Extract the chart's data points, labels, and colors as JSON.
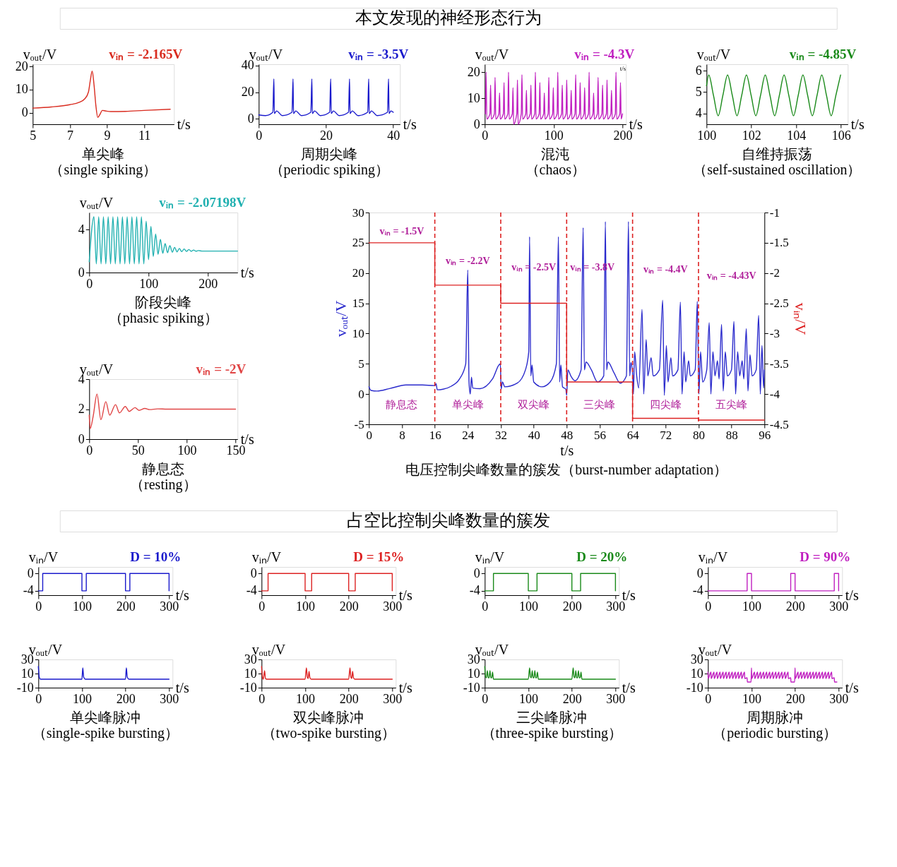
{
  "chart_data": [
    {
      "type": "other",
      "title": "本文发现的神经形态行为"
    },
    {
      "type": "line",
      "title": "单尖峰",
      "subtitle": "（single spiking）",
      "xlabel": "t/s",
      "ylabel": "vₒᵤₜ/V",
      "annotations": [
        "vᵢₙ = -2.165V"
      ],
      "xlim": [
        5,
        12.6
      ],
      "ylim": [
        -5,
        21
      ],
      "xticks": [
        5,
        7,
        9,
        11
      ],
      "yticks": [
        0,
        10,
        20
      ],
      "x": [
        5,
        6,
        7,
        7.5,
        7.8,
        8.0,
        8.1,
        8.2,
        8.3,
        8.4,
        8.5,
        8.6,
        8.75,
        8.9,
        9.2,
        10,
        11,
        12.4
      ],
      "series": [
        {
          "color": "#d92b1f",
          "values": [
            2,
            2.5,
            3.5,
            4.5,
            6,
            9,
            14,
            18,
            12,
            3,
            -2,
            -1,
            1,
            0.8,
            0.5,
            0.6,
            1,
            1.5
          ]
        }
      ]
    },
    {
      "type": "line",
      "title": "周期尖峰",
      "subtitle": "（periodic spiking）",
      "xlabel": "t/s",
      "ylabel": "vₒᵤₜ/V",
      "annotations": [
        "vᵢₙ = -3.5V"
      ],
      "xlim": [
        0,
        42
      ],
      "ylim": [
        -4,
        41
      ],
      "xticks": [
        0,
        20,
        40
      ],
      "yticks": [
        0,
        20,
        40
      ],
      "x": [
        0,
        2,
        4.2,
        4.5,
        4.65,
        5.3,
        7,
        9.9,
        10.2,
        10.35,
        11,
        12.7,
        15.5,
        15.8,
        15.95,
        16.6,
        18.3,
        21.1,
        21.4,
        21.55,
        22.2,
        23.9,
        26.7,
        27,
        27.15,
        27.8,
        29.5,
        32.4,
        32.7,
        32.85,
        33.5,
        35.2,
        38.3,
        38.6,
        38.75,
        39.3,
        40
      ],
      "series": [
        {
          "color": "#1a1acc",
          "values": [
            3,
            2.5,
            5,
            30,
            4,
            6,
            2.5,
            5,
            30,
            4,
            6,
            2.5,
            5,
            30,
            4,
            6,
            2.5,
            5,
            30,
            4,
            6,
            2.5,
            5,
            30,
            4,
            6,
            2.5,
            5,
            30,
            4,
            6,
            2.5,
            5,
            30,
            4,
            6,
            5
          ]
        }
      ]
    },
    {
      "type": "line",
      "title": "混沌",
      "subtitle": "（chaos）",
      "xlabel": "t/s",
      "ylabel": "vₒᵤₜ/V",
      "annotations": [
        "vᵢₙ = -4.3V",
        "t/s"
      ],
      "xlim": [
        0,
        205
      ],
      "ylim": [
        0,
        23
      ],
      "xticks": [
        0,
        100,
        200
      ],
      "yticks": [
        0,
        10,
        20
      ],
      "x": [
        1,
        2,
        3,
        7.5,
        8.5,
        9.5,
        14,
        15,
        16,
        20.5,
        21.5,
        22.5,
        27,
        28,
        29,
        33.5,
        34.5,
        35.5,
        40,
        41,
        42,
        46.5,
        47.5,
        48.5,
        53,
        54,
        55,
        59.5,
        60.5,
        61.5,
        66,
        67,
        68,
        72.5,
        73.5,
        74.5,
        79,
        80,
        81,
        85.5,
        86.5,
        87.5,
        92,
        93,
        94,
        98.5,
        99.5,
        100.5,
        105,
        106,
        107,
        111.5,
        112.5,
        113.5,
        118,
        119,
        120,
        124.5,
        125.5,
        126.5,
        131,
        132,
        133,
        137.5,
        138.5,
        139.5,
        144,
        145,
        146,
        150.5,
        151.5,
        152.5,
        157,
        158,
        159,
        163.5,
        164.5,
        165.5,
        170,
        171,
        172,
        176.5,
        177.5,
        178.5,
        183,
        184,
        185,
        189.5,
        190.5,
        191.5,
        196,
        197,
        198,
        200
      ],
      "series": [
        {
          "color": "#c020c0",
          "values": [
            4,
            20,
            2,
            4,
            15,
            2,
            4,
            18,
            2,
            4,
            12,
            2,
            4,
            16,
            2,
            4,
            20,
            2,
            4,
            14,
            0,
            4,
            17,
            0,
            4,
            19,
            2,
            4,
            13,
            2,
            4,
            15,
            2,
            4,
            20,
            2,
            4,
            16,
            2,
            4,
            12,
            2,
            4,
            18,
            2,
            4,
            14,
            2,
            4,
            20,
            2,
            4,
            15,
            2,
            4,
            17,
            2,
            4,
            13,
            2,
            4,
            19,
            2,
            4,
            16,
            2,
            4,
            14,
            2,
            4,
            20,
            2,
            4,
            12,
            2,
            4,
            18,
            2,
            4,
            15,
            2,
            4,
            17,
            2,
            4,
            13,
            2,
            4,
            20,
            2,
            4,
            16,
            2,
            4
          ]
        }
      ]
    },
    {
      "type": "line",
      "title": "自维持振荡",
      "subtitle": "（self-sustained oscillation）",
      "xlabel": "t/s",
      "ylabel": "vₒᵤₜ/V",
      "annotations": [
        "vᵢₙ = -4.85V"
      ],
      "xlim": [
        100,
        106.3
      ],
      "ylim": [
        3.5,
        6.3
      ],
      "xticks": [
        100,
        102,
        104,
        106
      ],
      "yticks": [
        4,
        5,
        6
      ],
      "x": [
        100,
        100.1,
        100.31,
        100.52,
        100.73,
        100.94,
        101.15,
        101.36,
        101.57,
        101.78,
        101.99,
        102.2,
        102.41,
        102.62,
        102.83,
        103.04,
        103.25,
        103.46,
        103.67,
        103.88,
        104.09,
        104.3,
        104.51,
        104.72,
        104.93,
        105.14,
        105.35,
        105.56,
        105.77,
        105.98
      ],
      "series": [
        {
          "color": "#1a8a1a",
          "values": [
            5.3,
            5.8,
            4.85,
            3.9,
            4.85,
            5.8,
            4.85,
            3.9,
            4.85,
            5.8,
            4.85,
            3.9,
            4.85,
            5.8,
            4.85,
            3.9,
            4.85,
            5.8,
            4.85,
            3.9,
            4.85,
            5.8,
            4.85,
            3.9,
            4.85,
            5.8,
            4.85,
            3.9,
            4.85,
            5.8
          ]
        }
      ]
    },
    {
      "type": "line",
      "title": "阶段尖峰",
      "subtitle": "（phasic spiking）",
      "xlabel": "t/s",
      "ylabel": "vₒᵤₜ/V",
      "annotations": [
        "vᵢₙ = -2.07198V"
      ],
      "xlim": [
        0,
        250
      ],
      "ylim": [
        0,
        5.6
      ],
      "xticks": [
        0,
        100,
        200
      ],
      "yticks": [
        0,
        4
      ],
      "x": [
        0,
        8,
        12,
        16,
        20,
        24,
        28,
        32,
        36,
        40,
        44,
        48,
        52,
        56,
        60,
        64,
        68,
        72,
        76,
        80,
        84,
        88,
        92,
        96,
        100,
        104,
        108,
        112,
        116,
        120,
        124,
        128,
        132,
        136,
        140,
        144,
        148,
        152,
        156,
        160,
        164,
        168,
        172,
        176,
        180,
        184,
        190,
        250
      ],
      "series": [
        {
          "color": "#20b0b0",
          "values": [
            1,
            5.2,
            0.8,
            5.2,
            0.8,
            5.2,
            0.8,
            5.2,
            0.8,
            5.2,
            0.8,
            5.2,
            0.8,
            5.2,
            0.8,
            5.2,
            0.8,
            5.2,
            0.8,
            5.2,
            0.8,
            5.2,
            0.8,
            4.8,
            1.2,
            4.3,
            1.5,
            3.6,
            1.7,
            3.1,
            1.8,
            2.7,
            1.85,
            2.5,
            1.9,
            2.35,
            1.93,
            2.25,
            1.95,
            2.2,
            1.97,
            2.15,
            1.98,
            2.1,
            1.99,
            2.05,
            2,
            2
          ]
        }
      ]
    },
    {
      "type": "line",
      "title": "静息态",
      "subtitle": "（resting）",
      "xlabel": "t/s",
      "ylabel": "vₒᵤₜ/V",
      "annotations": [
        "vᵢₙ = -2V"
      ],
      "xlim": [
        0,
        152
      ],
      "ylim": [
        0,
        4
      ],
      "xticks": [
        0,
        50,
        100,
        150
      ],
      "yticks": [
        0,
        2,
        4
      ],
      "x": [
        0,
        1,
        4,
        8,
        12,
        17,
        21,
        27,
        31,
        37,
        41,
        47,
        51,
        57,
        62,
        70,
        80,
        150
      ],
      "series": [
        {
          "color": "#e04545",
          "values": [
            1.6,
            0.7,
            1.5,
            3.0,
            1.3,
            2.5,
            1.6,
            2.3,
            1.75,
            2.18,
            1.85,
            2.1,
            1.92,
            2.05,
            1.97,
            2.02,
            2,
            2
          ]
        }
      ]
    },
    {
      "type": "line",
      "title": "电压控制尖峰数量的簇发（burst-number adaptation）",
      "xlabel": "t/s",
      "ylabel": "vₒᵤₜ/V",
      "y2label": "vᵢₙ/V",
      "xlim": [
        0,
        96
      ],
      "ylim": [
        -5,
        30
      ],
      "y2lim": [
        -4.5,
        -1
      ],
      "xticks": [
        0,
        8,
        16,
        24,
        32,
        40,
        48,
        56,
        64,
        72,
        80,
        88,
        96
      ],
      "yticks": [
        -5,
        0,
        5,
        10,
        15,
        20,
        25,
        30
      ],
      "y2ticks": [
        -4.5,
        -4,
        -3.5,
        -3,
        -2.5,
        -2,
        -1.5,
        -1
      ],
      "annotations": [
        "vᵢₙ = -1.5V",
        "vᵢₙ = -2.2V",
        "vᵢₙ = -2.5V",
        "vᵢₙ = -3.8V",
        "vᵢₙ = -4.4V",
        "vᵢₙ = -4.43V",
        "静息态",
        "单尖峰",
        "双尖峰",
        "三尖峰",
        "四尖峰",
        "五尖峰"
      ],
      "ref_lines": [
        {
          "axis": "x",
          "value": 16,
          "color": "#dd2222",
          "line_style": "dashed"
        },
        {
          "axis": "x",
          "value": 32,
          "color": "#dd2222",
          "line_style": "dashed"
        },
        {
          "axis": "x",
          "value": 48,
          "color": "#dd2222",
          "line_style": "dashed"
        },
        {
          "axis": "x",
          "value": 64,
          "color": "#dd2222",
          "line_style": "dashed"
        },
        {
          "axis": "x",
          "value": 80,
          "color": "#dd2222",
          "line_style": "dashed"
        }
      ],
      "series": [
        {
          "color": "#2a2acc",
          "type": "line",
          "x": [
            0,
            0.5,
            2,
            5,
            9,
            13,
            16,
            16.3,
            16.6,
            18,
            20,
            22,
            23.5,
            24,
            24.3,
            24.6,
            24.9,
            25.2,
            27,
            30,
            31.9,
            32.1,
            32.4,
            33,
            36,
            38,
            38.8,
            39,
            39.3,
            39.6,
            40,
            42,
            44,
            45.5,
            46,
            46.3,
            46.6,
            47,
            47.8,
            48,
            48.3,
            49,
            50,
            51.5,
            52,
            52.3,
            52.7,
            54,
            55.5,
            57,
            57.4,
            57.7,
            58,
            59.5,
            61,
            62.5,
            63,
            63.3,
            63.6,
            64,
            64.2,
            64.5,
            65,
            65.5,
            66.3,
            66.7,
            67.3,
            67.7,
            68.5,
            69,
            70.5,
            71.3,
            71.7,
            72.2,
            72.6,
            73.3,
            73.7,
            75,
            75.6,
            76,
            76.5,
            76.9,
            77.6,
            78,
            79.2,
            79.7,
            80.1,
            80.5,
            81,
            82,
            82.6,
            83,
            83.5,
            84,
            84.6,
            85,
            85.6,
            86,
            86.5,
            87,
            88,
            88.6,
            89,
            89.5,
            90,
            90.6,
            91,
            91.6,
            92,
            92.5,
            93,
            94,
            94.6,
            95,
            95.4,
            95.8,
            96
          ],
          "values": [
            1.2,
            0.6,
            0.5,
            0.9,
            1.5,
            1.5,
            1.4,
            1.7,
            0.7,
            0.8,
            1.3,
            2.5,
            5,
            20.5,
            2,
            0,
            2.8,
            1,
            0.9,
            2.5,
            5,
            0.8,
            2,
            1.2,
            1.8,
            4,
            7,
            26,
            3,
            4.8,
            2,
            1.2,
            2,
            5,
            26,
            2,
            4.8,
            1.2,
            0.8,
            -0.2,
            4,
            3,
            2.2,
            4,
            27.5,
            4,
            5.3,
            4,
            2,
            3,
            28.5,
            4,
            5.3,
            3.5,
            1.8,
            3,
            28.5,
            3,
            5.2,
            3.5,
            0,
            7,
            3,
            1,
            14,
            0,
            9,
            3,
            6,
            3,
            4,
            15.5,
            -0.2,
            8,
            2,
            6,
            3,
            4,
            15.2,
            0,
            7,
            2,
            5.5,
            3,
            4,
            15.3,
            0,
            7,
            2,
            4,
            11.8,
            0,
            7,
            3,
            5.5,
            2.5,
            11.5,
            0.5,
            7,
            3,
            4,
            12,
            0,
            7,
            3,
            5.5,
            2.5,
            10.8,
            0.5,
            6.5,
            3,
            4,
            13,
            0,
            8,
            1,
            4
          ]
        },
        {
          "color": "#dd2222",
          "type": "step",
          "axis": "y2",
          "x": [
            0,
            16,
            32,
            48,
            64,
            80,
            96
          ],
          "values": [
            -1.5,
            -2.2,
            -2.5,
            -3.8,
            -4.4,
            -4.43,
            -4.43
          ]
        }
      ]
    },
    {
      "type": "other",
      "title": "占空比控制尖峰数量的簇发"
    },
    {
      "type": "step",
      "xlabel": "t/s",
      "ylabel": "vᵢₙ/V",
      "annotations": [
        "D = 10%"
      ],
      "xlim": [
        0,
        308
      ],
      "ylim": [
        -5,
        1.5
      ],
      "xticks": [
        0,
        100,
        200,
        300
      ],
      "yticks": [
        -4,
        0
      ],
      "x": [
        0,
        10,
        100,
        110,
        200,
        210,
        300
      ],
      "series": [
        {
          "color": "#1a1acc",
          "values": [
            -4,
            0,
            -4,
            0,
            -4,
            0,
            -4
          ]
        }
      ]
    },
    {
      "type": "line",
      "title": "单尖峰脉冲",
      "subtitle": "（single-spike bursting）",
      "xlabel": "t/s",
      "ylabel": "vₒᵤₜ/V",
      "xlim": [
        0,
        308
      ],
      "ylim": [
        -10,
        30
      ],
      "xticks": [
        0,
        100,
        200,
        300
      ],
      "yticks": [
        -10,
        10,
        30
      ],
      "x": [
        0,
        2,
        5,
        100,
        102,
        104,
        108,
        200,
        202,
        204,
        208,
        300
      ],
      "series": [
        {
          "color": "#1a1acc",
          "values": [
            20,
            5,
            2,
            2,
            18,
            5,
            2,
            2,
            18,
            5,
            2,
            2
          ]
        }
      ]
    },
    {
      "type": "step",
      "xlabel": "t/s",
      "ylabel": "vᵢₙ/V",
      "annotations": [
        "D = 15%"
      ],
      "xlim": [
        0,
        308
      ],
      "ylim": [
        -5,
        1.5
      ],
      "xticks": [
        0,
        100,
        200,
        300
      ],
      "yticks": [
        -4,
        0
      ],
      "x": [
        0,
        15,
        100,
        115,
        200,
        215,
        300
      ],
      "series": [
        {
          "color": "#dd2222",
          "values": [
            -4,
            0,
            -4,
            0,
            -4,
            0,
            -4
          ]
        }
      ]
    },
    {
      "type": "line",
      "title": "双尖峰脉冲",
      "subtitle": "（two-spike bursting）",
      "xlabel": "t/s",
      "ylabel": "vₒᵤₜ/V",
      "xlim": [
        0,
        308
      ],
      "ylim": [
        -10,
        30
      ],
      "xticks": [
        0,
        100,
        200,
        300
      ],
      "yticks": [
        -10,
        10,
        30
      ],
      "x": [
        0,
        2,
        4,
        7,
        9,
        12,
        100,
        103,
        105,
        107,
        109,
        111,
        114,
        200,
        203,
        205,
        207,
        209,
        211,
        214,
        300
      ],
      "series": [
        {
          "color": "#dd2222",
          "values": [
            20,
            5,
            2,
            14,
            3,
            2,
            2,
            18,
            5,
            3,
            13,
            4,
            2,
            2,
            18,
            5,
            3,
            13,
            4,
            2,
            2
          ]
        }
      ]
    },
    {
      "type": "step",
      "xlabel": "t/s",
      "ylabel": "vᵢₙ/V",
      "annotations": [
        "D = 20%"
      ],
      "xlim": [
        0,
        308
      ],
      "ylim": [
        -5,
        1.5
      ],
      "xticks": [
        0,
        100,
        200,
        300
      ],
      "yticks": [
        -4,
        0
      ],
      "x": [
        0,
        20,
        100,
        120,
        200,
        220,
        300
      ],
      "series": [
        {
          "color": "#1a8a1a",
          "values": [
            -4,
            0,
            -4,
            0,
            -4,
            0,
            -4
          ]
        }
      ]
    },
    {
      "type": "line",
      "title": "三尖峰脉冲",
      "subtitle": "（three-spike bursting）",
      "xlabel": "t/s",
      "ylabel": "vₒᵤₜ/V",
      "xlim": [
        0,
        308
      ],
      "ylim": [
        -10,
        30
      ],
      "xticks": [
        0,
        100,
        200,
        300
      ],
      "yticks": [
        -10,
        10,
        30
      ],
      "x": [
        0,
        2,
        4,
        6,
        8,
        10,
        12,
        14,
        16,
        18,
        20,
        100,
        103,
        105,
        107,
        109,
        111,
        113,
        115,
        117,
        119,
        121,
        123,
        200,
        203,
        205,
        207,
        209,
        211,
        213,
        215,
        217,
        219,
        221,
        223,
        300
      ],
      "series": [
        {
          "color": "#1a8a1a",
          "values": [
            20,
            5,
            4,
            14,
            4,
            4,
            14,
            4,
            4,
            12,
            2,
            2,
            18,
            5,
            4,
            14,
            4,
            4,
            14,
            4,
            4,
            12,
            2,
            2,
            18,
            5,
            4,
            14,
            4,
            4,
            14,
            4,
            4,
            12,
            2,
            2
          ]
        }
      ]
    },
    {
      "type": "step",
      "xlabel": "t/s",
      "ylabel": "vᵢₙ/V",
      "annotations": [
        "D = 90%"
      ],
      "xlim": [
        0,
        308
      ],
      "ylim": [
        -5,
        1.5
      ],
      "xticks": [
        0,
        100,
        200,
        300
      ],
      "yticks": [
        -4,
        0
      ],
      "x": [
        0,
        90,
        100,
        190,
        200,
        290,
        300
      ],
      "series": [
        {
          "color": "#c020c0",
          "values": [
            -4,
            0,
            -4,
            0,
            -4,
            0,
            -4
          ]
        }
      ]
    },
    {
      "type": "line",
      "title": "周期脉冲",
      "subtitle": "（periodic bursting）",
      "xlabel": "t/s",
      "ylabel": "vₒᵤₜ/V",
      "xlim": [
        0,
        308
      ],
      "ylim": [
        -10,
        30
      ],
      "xticks": [
        0,
        100,
        200,
        300
      ],
      "yticks": [
        -10,
        10,
        30
      ],
      "x": [
        0,
        0.5,
        7,
        7.5,
        14,
        14.5,
        21,
        21.5,
        28,
        28.5,
        35,
        35.5,
        42,
        42.5,
        49,
        49.5,
        56,
        56.5,
        63,
        63.5,
        70,
        70.5,
        77,
        77.5,
        84,
        84.5,
        90,
        90.5,
        99,
        100,
        100.5,
        107,
        107.5,
        114,
        114.5,
        121,
        121.5,
        128,
        128.5,
        135,
        135.5,
        142,
        142.5,
        149,
        149.5,
        156,
        156.5,
        163,
        163.5,
        170,
        170.5,
        177,
        177.5,
        184,
        184.5,
        190,
        190.5,
        199,
        200,
        200.5,
        207,
        207.5,
        214,
        214.5,
        221,
        221.5,
        228,
        228.5,
        235,
        235.5,
        242,
        242.5,
        249,
        249.5,
        256,
        256.5,
        263,
        263.5,
        270,
        270.5,
        277,
        277.5,
        284,
        284.5,
        290,
        290.5,
        296
      ],
      "series": [
        {
          "color": "#c020c0",
          "values": [
            12,
            3,
            12,
            3,
            12,
            3,
            12,
            3,
            12,
            3,
            12,
            3,
            12,
            3,
            12,
            3,
            12,
            3,
            12,
            3,
            12,
            3,
            12,
            3,
            12,
            3,
            4,
            -2,
            -2,
            18,
            3,
            12,
            3,
            12,
            3,
            12,
            3,
            12,
            3,
            12,
            3,
            12,
            3,
            12,
            3,
            12,
            3,
            12,
            3,
            12,
            3,
            12,
            3,
            12,
            3,
            4,
            -2,
            -2,
            18,
            3,
            12,
            3,
            12,
            3,
            12,
            3,
            12,
            3,
            12,
            3,
            12,
            3,
            12,
            3,
            12,
            3,
            12,
            3,
            12,
            3,
            12,
            3,
            12,
            3,
            4,
            -2,
            -2
          ]
        }
      ]
    }
  ]
}
